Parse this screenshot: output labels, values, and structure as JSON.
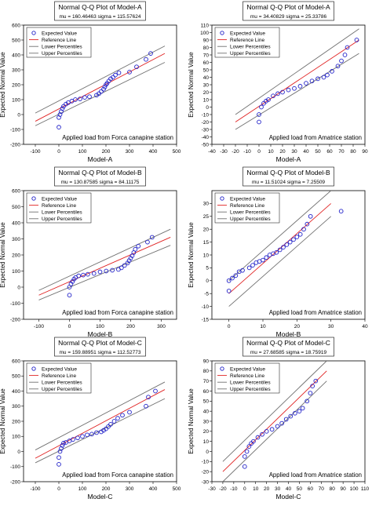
{
  "legend_labels": {
    "expected": "Expected Value",
    "reference": "Reference Line",
    "lower": "Lower Percentiles",
    "upper": "Upper Percentiles"
  },
  "ylabel": "Expected Normal Value",
  "colors": {
    "points": "#2020c8",
    "reference": "#e02020",
    "percentiles": "#707070"
  },
  "chart_data": [
    {
      "type": "scatter",
      "title": "Normal Q-Q Plot of Model-A",
      "stats": "mu = 160.46463   sigma = 115.57624",
      "xlabel": "Model-A",
      "ylabel": "Expected Normal Value",
      "annotation": "Applied load from Forca canapine station",
      "xlim": [
        -150,
        500
      ],
      "ylim": [
        -200,
        600
      ],
      "xticks": [
        "-100",
        "0",
        "100",
        "200",
        "300",
        "400",
        "500"
      ],
      "yticks": [
        "-200",
        "-100",
        "0",
        "100",
        "200",
        "300",
        "400",
        "500",
        "600"
      ],
      "points": [
        [
          0,
          -85
        ],
        [
          0,
          -20
        ],
        [
          5,
          0
        ],
        [
          10,
          20
        ],
        [
          15,
          40
        ],
        [
          20,
          55
        ],
        [
          30,
          70
        ],
        [
          40,
          80
        ],
        [
          55,
          90
        ],
        [
          70,
          100
        ],
        [
          90,
          105
        ],
        [
          110,
          115
        ],
        [
          130,
          120
        ],
        [
          160,
          130
        ],
        [
          170,
          140
        ],
        [
          180,
          155
        ],
        [
          190,
          170
        ],
        [
          195,
          185
        ],
        [
          200,
          200
        ],
        [
          205,
          210
        ],
        [
          212,
          225
        ],
        [
          220,
          240
        ],
        [
          230,
          250
        ],
        [
          240,
          265
        ],
        [
          255,
          280
        ],
        [
          300,
          285
        ],
        [
          330,
          320
        ],
        [
          370,
          370
        ],
        [
          390,
          410
        ]
      ],
      "reference": [
        [
          -100,
          -45
        ],
        [
          450,
          410
        ]
      ],
      "lower": [
        [
          -100,
          -75
        ],
        [
          450,
          350
        ]
      ],
      "upper": [
        [
          -100,
          10
        ],
        [
          450,
          460
        ]
      ],
      "legend_position": "top-left"
    },
    {
      "type": "scatter",
      "title": "Normal Q-Q Plot of Model-A",
      "stats": "mu = 34.40829   sigma = 25.33786",
      "xlabel": "Model-A",
      "ylabel": "Expected Normal Value",
      "annotation": "Applied load from Amatrice station",
      "xlim": [
        -40,
        90
      ],
      "ylim": [
        -50,
        110
      ],
      "xticks": [
        "-40",
        "-30",
        "-20",
        "-10",
        "0",
        "10",
        "20",
        "30",
        "40",
        "50",
        "60",
        "70",
        "80",
        "90"
      ],
      "yticks": [
        "-50",
        "-40",
        "-30",
        "-20",
        "-10",
        "0",
        "10",
        "20",
        "30",
        "40",
        "50",
        "60",
        "70",
        "80",
        "90",
        "100",
        "110"
      ],
      "points": [
        [
          0,
          -20
        ],
        [
          0,
          -10
        ],
        [
          2,
          0
        ],
        [
          4,
          5
        ],
        [
          6,
          8
        ],
        [
          8,
          10
        ],
        [
          12,
          15
        ],
        [
          16,
          18
        ],
        [
          20,
          20
        ],
        [
          25,
          23
        ],
        [
          30,
          25
        ],
        [
          35,
          28
        ],
        [
          40,
          32
        ],
        [
          45,
          35
        ],
        [
          50,
          38
        ],
        [
          55,
          40
        ],
        [
          58,
          43
        ],
        [
          62,
          48
        ],
        [
          67,
          55
        ],
        [
          70,
          62
        ],
        [
          73,
          70
        ],
        [
          75,
          80
        ],
        [
          83,
          90
        ]
      ],
      "reference": [
        [
          -20,
          -20
        ],
        [
          85,
          90
        ]
      ],
      "lower": [
        [
          -20,
          -30
        ],
        [
          85,
          72
        ]
      ],
      "upper": [
        [
          -20,
          -10
        ],
        [
          85,
          105
        ]
      ],
      "legend_position": "top-left"
    },
    {
      "type": "scatter",
      "title": "Normal Q-Q Plot of Model-B",
      "stats": "mu = 130.87585   sigma = 84.11175",
      "xlabel": "Model-B",
      "ylabel": "Expected Normal Value",
      "annotation": "Applied load from Forca canapine station",
      "xlim": [
        -150,
        350
      ],
      "ylim": [
        -200,
        600
      ],
      "xticks": [
        "-100",
        "0",
        "100",
        "200",
        "300"
      ],
      "yticks": [
        "-200",
        "-100",
        "0",
        "100",
        "200",
        "300",
        "400",
        "500",
        "600"
      ],
      "points": [
        [
          0,
          -50
        ],
        [
          0,
          0
        ],
        [
          5,
          20
        ],
        [
          10,
          35
        ],
        [
          15,
          50
        ],
        [
          20,
          60
        ],
        [
          30,
          70
        ],
        [
          45,
          75
        ],
        [
          60,
          80
        ],
        [
          80,
          85
        ],
        [
          100,
          95
        ],
        [
          120,
          100
        ],
        [
          140,
          105
        ],
        [
          160,
          110
        ],
        [
          170,
          120
        ],
        [
          180,
          135
        ],
        [
          190,
          150
        ],
        [
          195,
          165
        ],
        [
          200,
          180
        ],
        [
          205,
          195
        ],
        [
          210,
          215
        ],
        [
          215,
          235
        ],
        [
          225,
          255
        ],
        [
          255,
          280
        ],
        [
          270,
          310
        ]
      ],
      "reference": [
        [
          -100,
          -50
        ],
        [
          330,
          310
        ]
      ],
      "lower": [
        [
          -100,
          -80
        ],
        [
          330,
          260
        ]
      ],
      "upper": [
        [
          -100,
          -20
        ],
        [
          330,
          360
        ]
      ],
      "legend_position": "top-left"
    },
    {
      "type": "scatter",
      "title": "Normal Q-Q Plot of Model-B",
      "stats": "mu = 11.51024   sigma = 7.25509",
      "xlabel": "Model-B",
      "ylabel": "Expected Normal Value",
      "annotation": "Applied load from Amatrice station",
      "xlim": [
        -5,
        40
      ],
      "ylim": [
        -15,
        35
      ],
      "xticks": [
        "0",
        "10",
        "20",
        "30",
        "40"
      ],
      "yticks": [
        "-15",
        "-10",
        "-5",
        "0",
        "5",
        "10",
        "15",
        "20",
        "25",
        "30"
      ],
      "points": [
        [
          0,
          -4
        ],
        [
          0,
          0
        ],
        [
          1,
          1
        ],
        [
          2,
          2
        ],
        [
          3,
          3.5
        ],
        [
          4,
          4
        ],
        [
          6,
          5
        ],
        [
          7,
          6
        ],
        [
          8,
          7
        ],
        [
          9,
          7.5
        ],
        [
          10,
          8
        ],
        [
          11,
          9
        ],
        [
          12,
          10
        ],
        [
          13,
          10.5
        ],
        [
          14,
          11
        ],
        [
          15,
          12
        ],
        [
          16,
          13
        ],
        [
          17,
          14
        ],
        [
          18,
          15
        ],
        [
          19,
          16
        ],
        [
          20,
          17
        ],
        [
          21,
          18
        ],
        [
          22,
          20
        ],
        [
          23,
          22
        ],
        [
          24,
          25
        ],
        [
          33,
          27
        ]
      ],
      "reference": [
        [
          0,
          -5
        ],
        [
          30,
          30
        ]
      ],
      "lower": [
        [
          0,
          -10
        ],
        [
          30,
          25
        ]
      ],
      "upper": [
        [
          0,
          0
        ],
        [
          30,
          35
        ]
      ],
      "legend_position": "top-left"
    },
    {
      "type": "scatter",
      "title": "Normal Q-Q Plot of Model-C",
      "stats": "mu = 159.88951   sigma = 112.52773",
      "xlabel": "Model-C",
      "ylabel": "Expected Normal Value",
      "annotation": "Applied load from Forca canapine station",
      "xlim": [
        -150,
        500
      ],
      "ylim": [
        -200,
        600
      ],
      "xticks": [
        "-100",
        "0",
        "100",
        "200",
        "300",
        "400",
        "500"
      ],
      "yticks": [
        "-200",
        "-100",
        "0",
        "100",
        "200",
        "300",
        "400",
        "500",
        "600"
      ],
      "points": [
        [
          0,
          -85
        ],
        [
          0,
          -40
        ],
        [
          5,
          0
        ],
        [
          10,
          20
        ],
        [
          15,
          40
        ],
        [
          20,
          55
        ],
        [
          30,
          60
        ],
        [
          45,
          70
        ],
        [
          60,
          80
        ],
        [
          80,
          90
        ],
        [
          100,
          100
        ],
        [
          120,
          110
        ],
        [
          140,
          115
        ],
        [
          160,
          125
        ],
        [
          180,
          130
        ],
        [
          190,
          140
        ],
        [
          200,
          150
        ],
        [
          210,
          165
        ],
        [
          220,
          180
        ],
        [
          235,
          200
        ],
        [
          250,
          220
        ],
        [
          270,
          240
        ],
        [
          300,
          260
        ],
        [
          370,
          300
        ],
        [
          380,
          360
        ],
        [
          410,
          400
        ]
      ],
      "reference": [
        [
          -100,
          -45
        ],
        [
          450,
          410
        ]
      ],
      "lower": [
        [
          -100,
          -75
        ],
        [
          450,
          350
        ]
      ],
      "upper": [
        [
          -100,
          10
        ],
        [
          450,
          460
        ]
      ],
      "legend_position": "top-left"
    },
    {
      "type": "scatter",
      "title": "Normal Q-Q Plot of Model-C",
      "stats": "mu = 27.68585   sigma = 18.75919",
      "xlabel": "Model-C",
      "ylabel": "Expected Normal Value",
      "annotation": "Applied load from Amatrice station",
      "xlim": [
        -30,
        110
      ],
      "ylim": [
        -30,
        90
      ],
      "xticks": [
        "-30",
        "-20",
        "-10",
        "0",
        "10",
        "20",
        "30",
        "40",
        "50",
        "60",
        "70",
        "80",
        "90",
        "100",
        "110"
      ],
      "yticks": [
        "-30",
        "-20",
        "-10",
        "0",
        "10",
        "20",
        "30",
        "40",
        "50",
        "60",
        "70",
        "80",
        "90"
      ],
      "points": [
        [
          0,
          -15
        ],
        [
          0,
          -5
        ],
        [
          2,
          0
        ],
        [
          4,
          5
        ],
        [
          6,
          8
        ],
        [
          8,
          10
        ],
        [
          12,
          14
        ],
        [
          16,
          17
        ],
        [
          20,
          20
        ],
        [
          25,
          22
        ],
        [
          30,
          25
        ],
        [
          34,
          28
        ],
        [
          38,
          32
        ],
        [
          42,
          35
        ],
        [
          46,
          38
        ],
        [
          50,
          40
        ],
        [
          53,
          43
        ],
        [
          57,
          50
        ],
        [
          60,
          58
        ],
        [
          62,
          65
        ],
        [
          65,
          70
        ]
      ],
      "reference": [
        [
          -20,
          -20
        ],
        [
          75,
          80
        ]
      ],
      "lower": [
        [
          -20,
          -30
        ],
        [
          75,
          70
        ]
      ],
      "upper": [
        [
          -20,
          -10
        ],
        [
          75,
          90
        ]
      ],
      "legend_position": "top-left"
    }
  ]
}
